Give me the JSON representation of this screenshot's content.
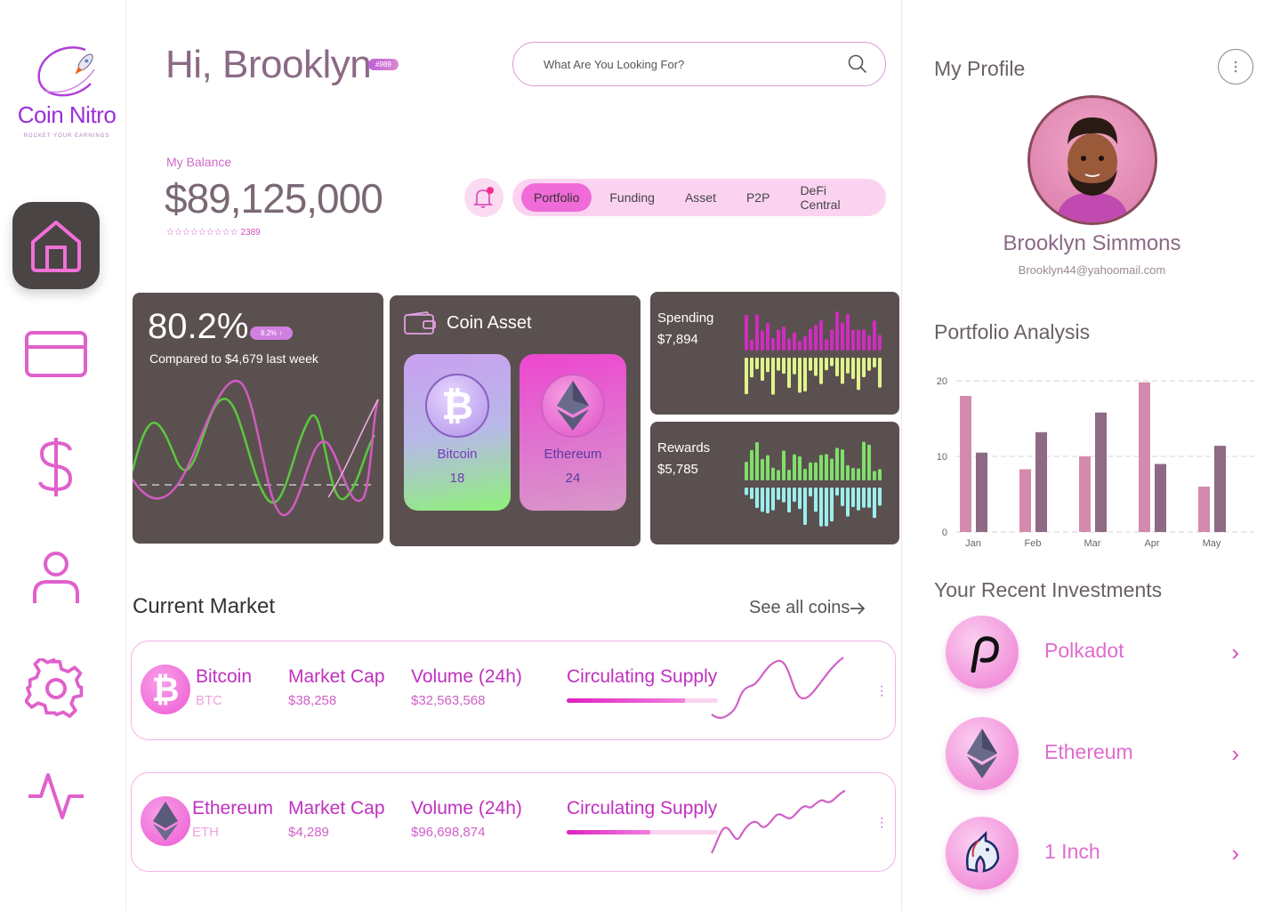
{
  "brand": {
    "name": "Coin Nitro",
    "tagline": "ROCKET YOUR EARNINGS"
  },
  "nav": [
    {
      "name": "home",
      "icon": "home-icon",
      "active": true
    },
    {
      "name": "cards",
      "icon": "card-icon"
    },
    {
      "name": "finance",
      "icon": "dollar-icon"
    },
    {
      "name": "profile",
      "icon": "user-icon"
    },
    {
      "name": "settings",
      "icon": "gear-icon"
    },
    {
      "name": "activity",
      "icon": "activity-icon"
    }
  ],
  "header": {
    "greeting": "Hi, Brooklyn",
    "user_id": "#989"
  },
  "search": {
    "placeholder": "What Are You Looking For?"
  },
  "balance": {
    "label": "My Balance",
    "value": "$89,125,000",
    "stars": "☆☆☆☆☆☆☆☆☆",
    "rating_count": "2389"
  },
  "tabs": [
    "Portfolio",
    "Funding",
    "Asset",
    "P2P",
    "DeFi Central"
  ],
  "growth_card": {
    "percent": "80.2%",
    "chip": "8.2% ↑",
    "compare": "Compared to $4,679 last week"
  },
  "coin_asset": {
    "title": "Coin Asset",
    "coins": [
      {
        "name": "Bitcoin",
        "count": "18"
      },
      {
        "name": "Ethereum",
        "count": "24"
      }
    ]
  },
  "spending": {
    "label": "Spending",
    "value": "$7,894"
  },
  "rewards": {
    "label": "Rewards",
    "value": "$5,785"
  },
  "market": {
    "title": "Current Market",
    "see_all": "See all coins",
    "rows": [
      {
        "name": "Bitcoin",
        "symbol": "BTC",
        "cap_label": "Market Cap",
        "cap": "$38,258",
        "vol_label": "Volume (24h)",
        "vol": "$32,563,568",
        "supply_label": "Circulating Supply",
        "supply_fraction": 0.78
      },
      {
        "name": "Ethereum",
        "symbol": "ETH",
        "cap_label": "Market Cap",
        "cap": "$4,289",
        "vol_label": "Volume (24h)",
        "vol": "$96,698,874",
        "supply_label": "Circulating Supply",
        "supply_fraction": 0.55
      }
    ]
  },
  "profile": {
    "title": "My Profile",
    "name": "Brooklyn Simmons",
    "email": "Brooklyn44@yahoomail.com"
  },
  "portfolio_analysis": {
    "title": "Portfolio Analysis"
  },
  "chart_data": {
    "type": "bar",
    "categories": [
      "Jan",
      "Feb",
      "Mar",
      "Apr",
      "May"
    ],
    "series": [
      {
        "values": [
          18,
          8.3,
          10,
          19.8,
          6
        ],
        "color": "#d48aac"
      },
      {
        "values": [
          10.5,
          13.2,
          15.8,
          9,
          11.4
        ],
        "color": "#8e6a84"
      }
    ],
    "yticks": [
      0,
      10,
      20
    ],
    "ylim": [
      0,
      20
    ]
  },
  "investments": {
    "title": "Your Recent Investments",
    "items": [
      {
        "name": "Polkadot"
      },
      {
        "name": "Ethereum"
      },
      {
        "name": "1 Inch"
      }
    ]
  }
}
